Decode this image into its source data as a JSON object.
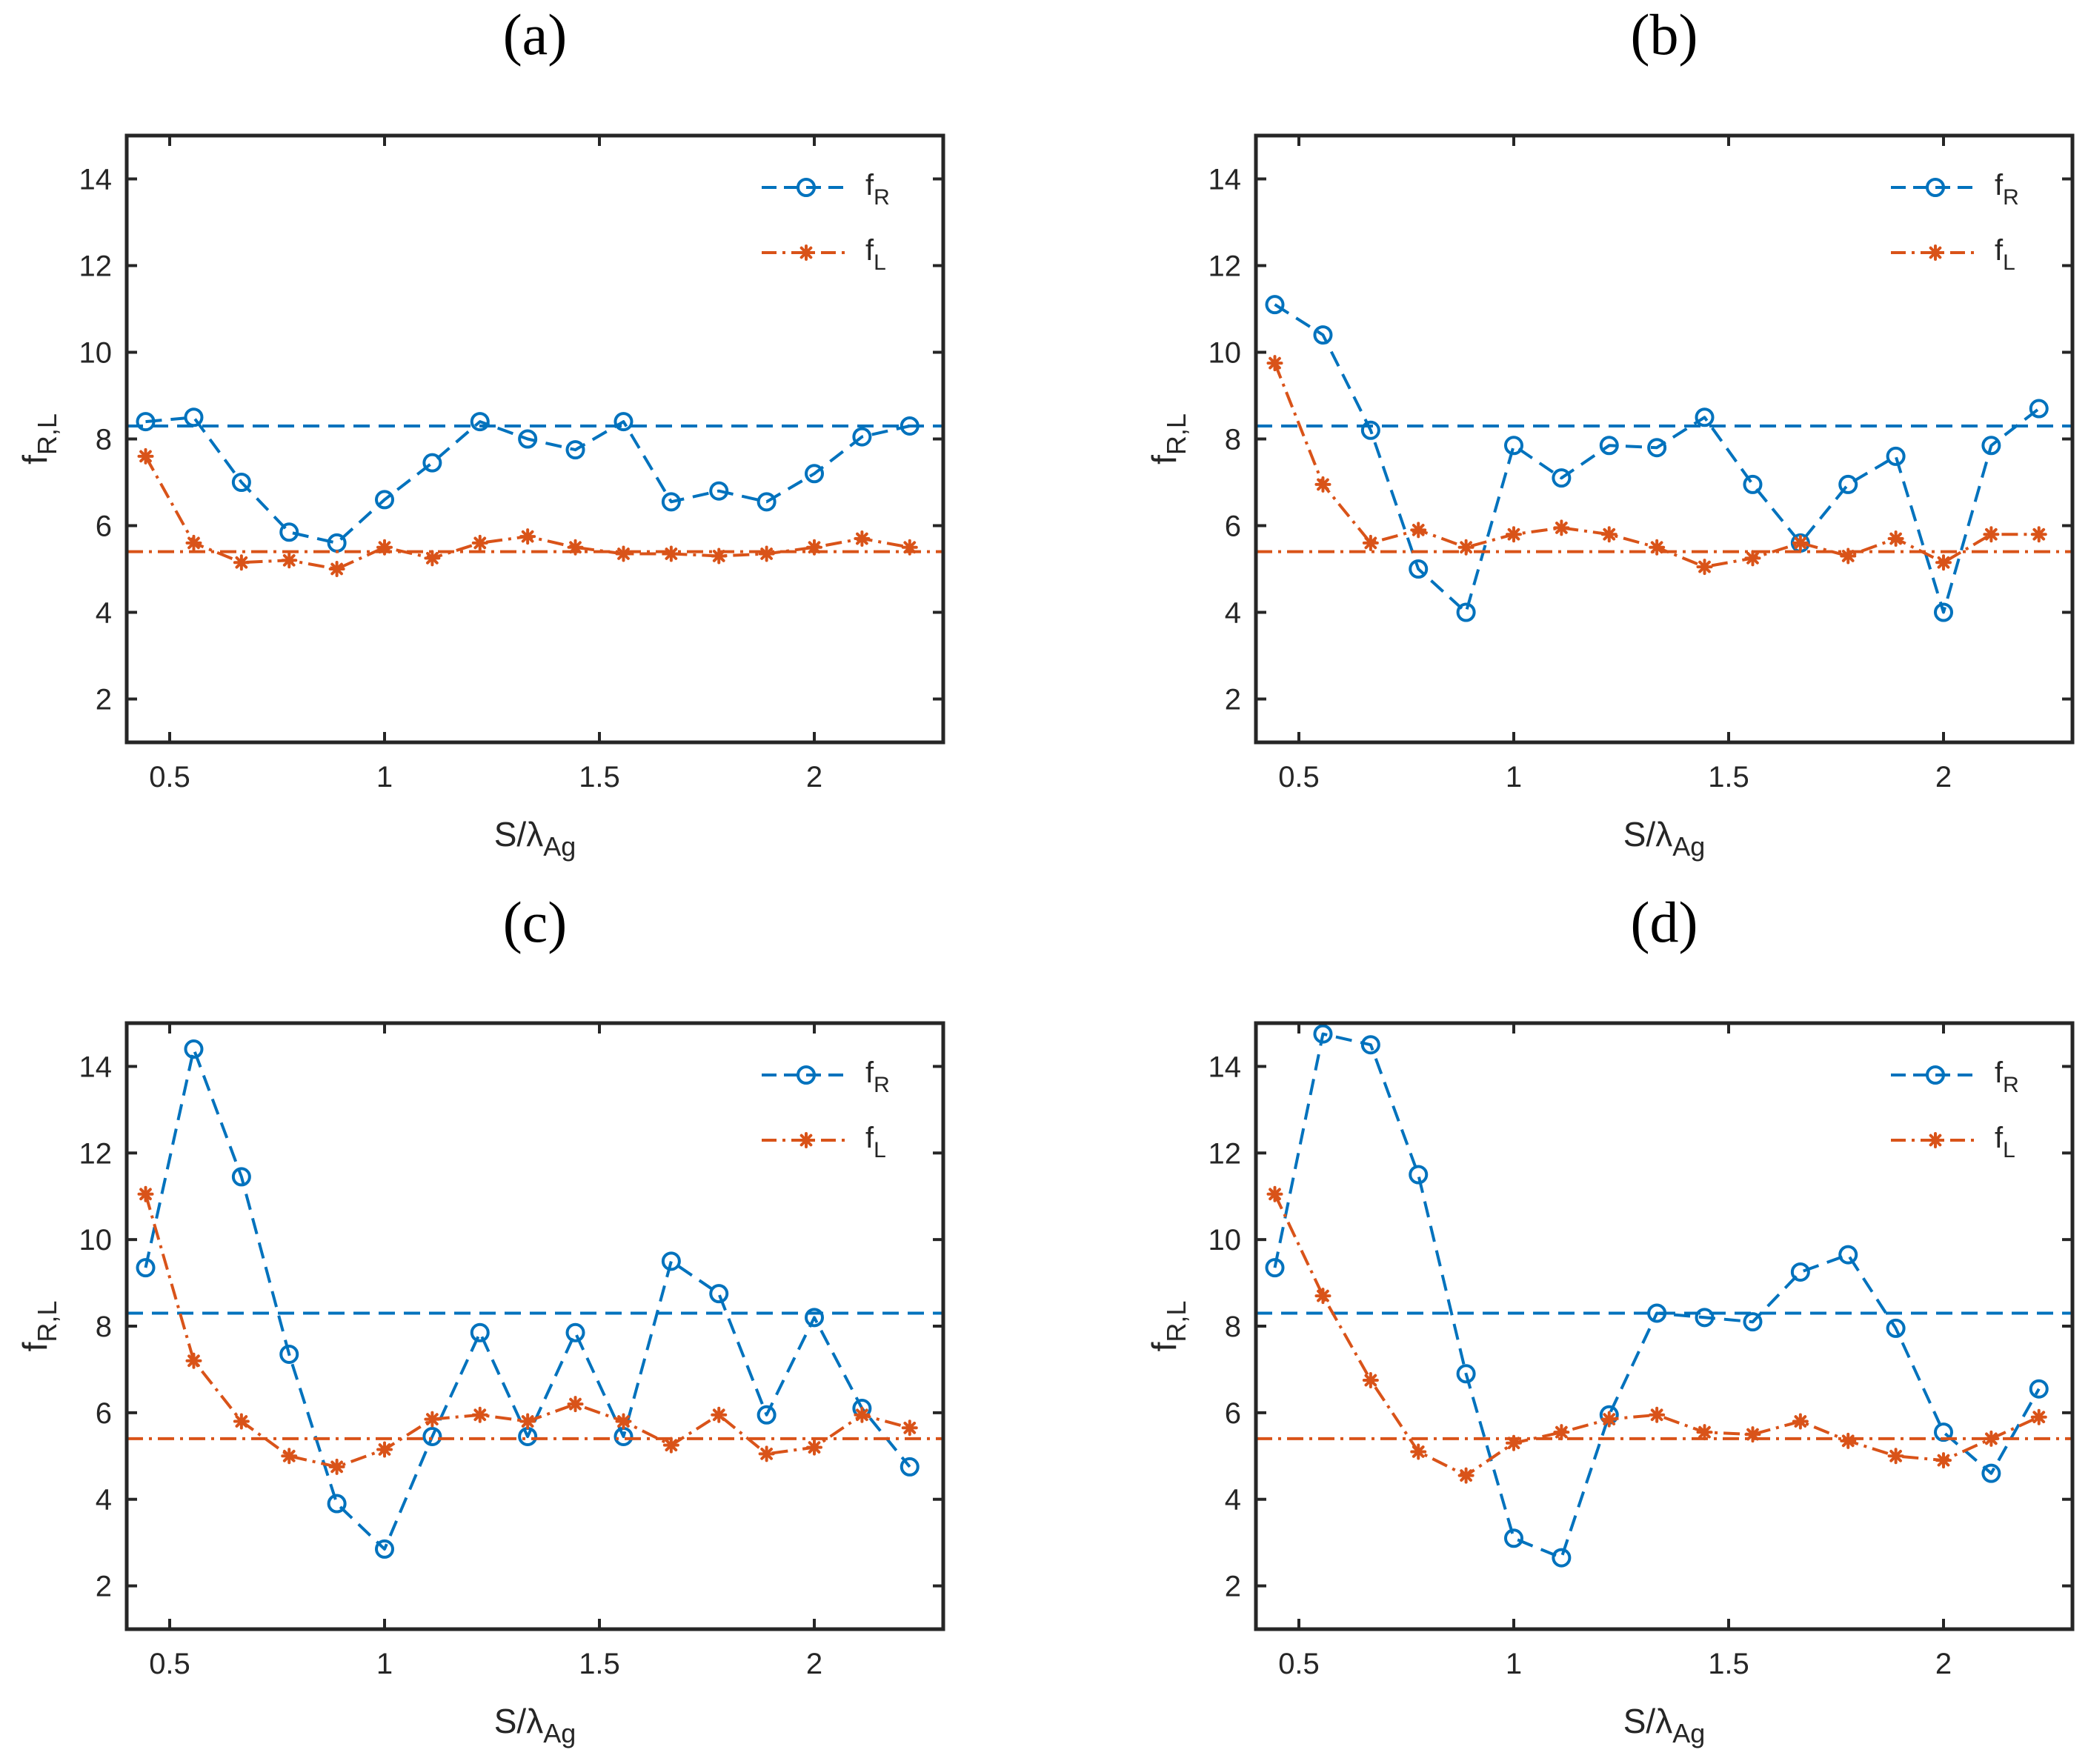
{
  "colors": {
    "fR": "#0072BD",
    "fL": "#D95319",
    "axis": "#262626",
    "background": "#ffffff"
  },
  "chart_data": [
    {
      "type": "line",
      "title": "(a)",
      "xlabel": "S/λ",
      "xlabel_sub": "Ag",
      "ylabel": "f",
      "ylabel_sub": "R,L",
      "xlim": [
        0.4,
        2.3
      ],
      "ylim": [
        1,
        15
      ],
      "xticks": [
        0.5,
        1,
        1.5,
        2
      ],
      "xtick_labels": [
        "0.5",
        "1",
        "1.5",
        "2"
      ],
      "yticks": [
        2,
        4,
        6,
        8,
        10,
        12,
        14
      ],
      "ytick_labels": [
        "2",
        "4",
        "6",
        "8",
        "10",
        "12",
        "14"
      ],
      "legend_position": "top-right",
      "x": [
        0.444,
        0.556,
        0.667,
        0.778,
        0.889,
        1.0,
        1.111,
        1.222,
        1.333,
        1.444,
        1.556,
        1.667,
        1.778,
        1.889,
        2.0,
        2.111,
        2.222
      ],
      "series": [
        {
          "name": "f",
          "sub": "R",
          "marker": "circle",
          "reference": 8.3,
          "values": [
            8.4,
            8.5,
            7.0,
            5.85,
            5.6,
            6.6,
            7.45,
            8.4,
            8.0,
            7.75,
            8.4,
            6.55,
            6.8,
            6.55,
            7.2,
            8.05,
            8.3
          ]
        },
        {
          "name": "f",
          "sub": "L",
          "marker": "asterisk",
          "reference": 5.4,
          "values": [
            7.6,
            5.6,
            5.15,
            5.2,
            5.0,
            5.5,
            5.25,
            5.6,
            5.75,
            5.5,
            5.35,
            5.35,
            5.3,
            5.35,
            5.5,
            5.7,
            5.5
          ]
        }
      ]
    },
    {
      "type": "line",
      "title": "(b)",
      "xlabel": "S/λ",
      "xlabel_sub": "Ag",
      "ylabel": "f",
      "ylabel_sub": "R,L",
      "xlim": [
        0.4,
        2.3
      ],
      "ylim": [
        1,
        15
      ],
      "xticks": [
        0.5,
        1,
        1.5,
        2
      ],
      "xtick_labels": [
        "0.5",
        "1",
        "1.5",
        "2"
      ],
      "yticks": [
        2,
        4,
        6,
        8,
        10,
        12,
        14
      ],
      "ytick_labels": [
        "2",
        "4",
        "6",
        "8",
        "10",
        "12",
        "14"
      ],
      "legend_position": "top-right",
      "x": [
        0.444,
        0.556,
        0.667,
        0.778,
        0.889,
        1.0,
        1.111,
        1.222,
        1.333,
        1.444,
        1.556,
        1.667,
        1.778,
        1.889,
        2.0,
        2.111,
        2.222
      ],
      "series": [
        {
          "name": "f",
          "sub": "R",
          "marker": "circle",
          "reference": 8.3,
          "values": [
            11.1,
            10.4,
            8.2,
            5.0,
            4.0,
            7.85,
            7.1,
            7.85,
            7.8,
            8.5,
            6.95,
            5.6,
            6.95,
            7.6,
            4.0,
            7.85,
            8.7
          ]
        },
        {
          "name": "f",
          "sub": "L",
          "marker": "asterisk",
          "reference": 5.4,
          "values": [
            9.75,
            6.95,
            5.6,
            5.9,
            5.5,
            5.8,
            5.95,
            5.8,
            5.5,
            5.05,
            5.25,
            5.6,
            5.3,
            5.7,
            5.15,
            5.8,
            5.8
          ]
        }
      ]
    },
    {
      "type": "line",
      "title": "(c)",
      "xlabel": "S/λ",
      "xlabel_sub": "Ag",
      "ylabel": "f",
      "ylabel_sub": "R,L",
      "xlim": [
        0.4,
        2.3
      ],
      "ylim": [
        1,
        15
      ],
      "xticks": [
        0.5,
        1,
        1.5,
        2
      ],
      "xtick_labels": [
        "0.5",
        "1",
        "1.5",
        "2"
      ],
      "yticks": [
        2,
        4,
        6,
        8,
        10,
        12,
        14
      ],
      "ytick_labels": [
        "2",
        "4",
        "6",
        "8",
        "10",
        "12",
        "14"
      ],
      "legend_position": "top-right",
      "x": [
        0.444,
        0.556,
        0.667,
        0.778,
        0.889,
        1.0,
        1.111,
        1.222,
        1.333,
        1.444,
        1.556,
        1.667,
        1.778,
        1.889,
        2.0,
        2.111,
        2.222
      ],
      "series": [
        {
          "name": "f",
          "sub": "R",
          "marker": "circle",
          "reference": 8.3,
          "values": [
            9.35,
            14.4,
            11.45,
            7.35,
            3.9,
            2.85,
            5.45,
            7.85,
            5.45,
            7.85,
            5.45,
            9.5,
            8.75,
            5.95,
            8.2,
            6.1,
            4.75
          ]
        },
        {
          "name": "f",
          "sub": "L",
          "marker": "asterisk",
          "reference": 5.4,
          "values": [
            11.05,
            7.2,
            5.8,
            5.0,
            4.75,
            5.15,
            5.85,
            5.95,
            5.8,
            6.2,
            5.8,
            5.25,
            5.95,
            5.05,
            5.2,
            5.95,
            5.65
          ]
        }
      ]
    },
    {
      "type": "line",
      "title": "(d)",
      "xlabel": "S/λ",
      "xlabel_sub": "Ag",
      "ylabel": "f",
      "ylabel_sub": "R,L",
      "xlim": [
        0.4,
        2.3
      ],
      "ylim": [
        1,
        15
      ],
      "xticks": [
        0.5,
        1,
        1.5,
        2
      ],
      "xtick_labels": [
        "0.5",
        "1",
        "1.5",
        "2"
      ],
      "yticks": [
        2,
        4,
        6,
        8,
        10,
        12,
        14
      ],
      "ytick_labels": [
        "2",
        "4",
        "6",
        "8",
        "10",
        "12",
        "14"
      ],
      "legend_position": "top-right",
      "x": [
        0.444,
        0.556,
        0.667,
        0.778,
        0.889,
        1.0,
        1.111,
        1.222,
        1.333,
        1.444,
        1.556,
        1.667,
        1.778,
        1.889,
        2.0,
        2.111,
        2.222
      ],
      "series": [
        {
          "name": "f",
          "sub": "R",
          "marker": "circle",
          "reference": 8.3,
          "values": [
            9.35,
            14.75,
            14.5,
            11.5,
            6.9,
            3.1,
            2.65,
            5.95,
            8.3,
            8.2,
            8.1,
            9.25,
            9.65,
            7.95,
            5.55,
            4.6,
            6.55
          ]
        },
        {
          "name": "f",
          "sub": "L",
          "marker": "asterisk",
          "reference": 5.4,
          "values": [
            11.05,
            8.7,
            6.75,
            5.1,
            4.55,
            5.3,
            5.55,
            5.85,
            5.95,
            5.55,
            5.5,
            5.8,
            5.35,
            5.0,
            4.9,
            5.4,
            5.9
          ]
        }
      ]
    }
  ]
}
